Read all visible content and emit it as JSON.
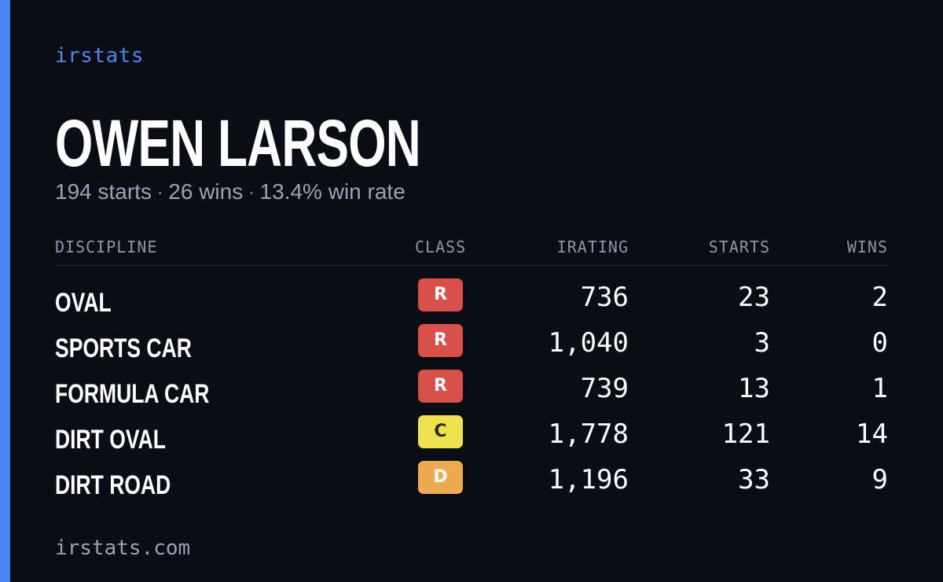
{
  "brand": {
    "name": "irstats"
  },
  "player": {
    "name": "OWEN LARSON",
    "summary": {
      "starts": "194 starts",
      "wins": "26 wins",
      "win_rate": "13.4% win rate",
      "separator": "·"
    }
  },
  "table": {
    "headers": {
      "discipline": "DISCIPLINE",
      "class": "CLASS",
      "irating": "IRATING",
      "starts": "STARTS",
      "wins": "WINS"
    },
    "rows": [
      {
        "discipline": "OVAL",
        "class": "R",
        "irating": "736",
        "starts": "23",
        "wins": "2"
      },
      {
        "discipline": "SPORTS CAR",
        "class": "R",
        "irating": "1,040",
        "starts": "3",
        "wins": "0"
      },
      {
        "discipline": "FORMULA CAR",
        "class": "R",
        "irating": "739",
        "starts": "13",
        "wins": "1"
      },
      {
        "discipline": "DIRT OVAL",
        "class": "C",
        "irating": "1,778",
        "starts": "121",
        "wins": "14"
      },
      {
        "discipline": "DIRT ROAD",
        "class": "D",
        "irating": "1,196",
        "starts": "33",
        "wins": "9"
      }
    ]
  },
  "footer": {
    "url": "irstats.com"
  },
  "colors": {
    "accent": "#4a86f0",
    "class_R": "#d9504b",
    "class_C": "#eee34e",
    "class_D": "#eeaa50",
    "class_text_R": "#ffffff",
    "class_text_C": "#2a2a1a",
    "class_text_D": "#ffffff"
  }
}
